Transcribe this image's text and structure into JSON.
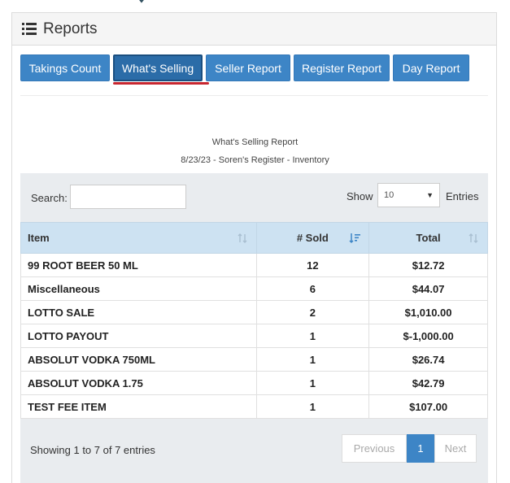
{
  "header": {
    "title": "Reports",
    "icon": "list-icon"
  },
  "tabs": [
    {
      "label": "Takings Count",
      "active": false
    },
    {
      "label": "What's Selling",
      "active": true
    },
    {
      "label": "Seller Report",
      "active": false
    },
    {
      "label": "Register Report",
      "active": false
    },
    {
      "label": "Day Report",
      "active": false
    }
  ],
  "report": {
    "title": "What's Selling Report",
    "subtitle": "8/23/23 - Soren's Register - Inventory"
  },
  "search": {
    "label": "Search:",
    "value": ""
  },
  "page_size": {
    "label": "Show",
    "value": "10",
    "suffix": "Entries"
  },
  "table": {
    "columns": [
      "Item",
      "# Sold",
      "Total"
    ],
    "rows": [
      [
        "99 ROOT BEER 50 ML",
        "12",
        "$12.72"
      ],
      [
        "Miscellaneous",
        "6",
        "$44.07"
      ],
      [
        "LOTTO SALE",
        "2",
        "$1,010.00"
      ],
      [
        "LOTTO PAYOUT",
        "1",
        "$-1,000.00"
      ],
      [
        "ABSOLUT VODKA 750ML",
        "1",
        "$26.74"
      ],
      [
        "ABSOLUT VODKA 1.75",
        "1",
        "$42.79"
      ],
      [
        "TEST FEE ITEM",
        "1",
        "$107.00"
      ]
    ]
  },
  "footer": {
    "info": "Showing 1 to 7 of 7 entries",
    "previous": "Previous",
    "current_page": "1",
    "next": "Next"
  },
  "colors": {
    "accent": "#3d85c6",
    "header_bg": "#cde2f2",
    "active_underline": "#c8262f"
  }
}
